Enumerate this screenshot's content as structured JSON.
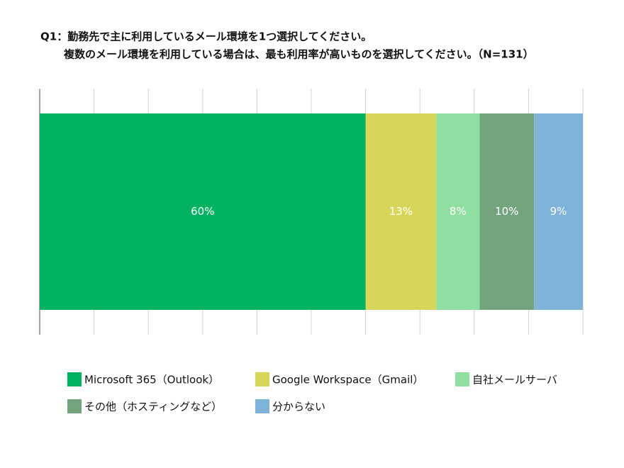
{
  "chart_data": {
    "type": "stacked-bar-horizontal",
    "title": "Q1：勤務先で主に利用しているメール環境を1つ選択してください。",
    "subtitle": "複数のメール環境を利用している場合は、最も利用率が高いものを選択してください。（N=131）",
    "categories": [
      null
    ],
    "series": [
      {
        "name": "Microsoft 365（Outlook）",
        "color": "#00b261",
        "values": [
          60
        ],
        "value_labels": [
          "60%"
        ]
      },
      {
        "name": "Google Workspace（Gmail）",
        "color": "#d6d65a",
        "values": [
          13
        ],
        "value_labels": [
          "13%"
        ]
      },
      {
        "name": "自社メールサーバ",
        "color": "#8fe0a0",
        "values": [
          8
        ],
        "value_labels": [
          "8%"
        ]
      },
      {
        "name": "その他（ホスティングなど）",
        "color": "#72a57e",
        "values": [
          10
        ],
        "value_labels": [
          "10%"
        ]
      },
      {
        "name": "分からない",
        "color": "#7fb3d8",
        "values": [
          9
        ],
        "value_labels": [
          "9%"
        ]
      }
    ],
    "xlim": [
      0,
      100
    ],
    "xticks": [
      0,
      10,
      20,
      30,
      40,
      50,
      60,
      70,
      80,
      90,
      100
    ],
    "grid": true
  }
}
